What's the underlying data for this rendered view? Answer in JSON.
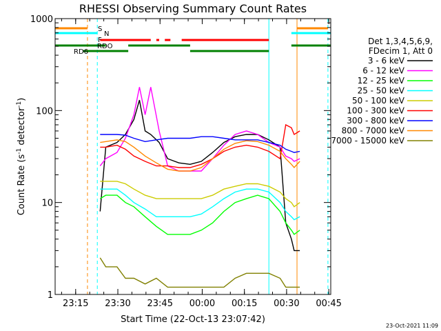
{
  "chart_data": {
    "type": "line",
    "title": "RHESSI Observing Summary Count Rates",
    "xlabel": "Start Time (22-Oct-13 23:07:42)",
    "ylabel": "Count Rate (s^-1 detector^-1)",
    "ylabel_parts": [
      "Count Rate (s",
      "-1",
      " detector",
      "-1",
      ")"
    ],
    "yscale": "log",
    "ylim": [
      1,
      1000
    ],
    "xlim_minutes_after_start": [
      0,
      98
    ],
    "x_ticks": [
      "23:15",
      "23:30",
      "23:45",
      "00:00",
      "00:15",
      "00:30",
      "00:45"
    ],
    "x_tick_minutes": [
      7.3,
      22.3,
      37.3,
      52.3,
      67.3,
      82.3,
      97.3
    ],
    "y_ticks": [
      "1",
      "10",
      "100",
      "1000"
    ],
    "y_tick_values": [
      1,
      10,
      100,
      1000
    ],
    "legend_header": [
      "Det 1,3,4,5,6,9,",
      "FDecim 1, Att 0"
    ],
    "legend_placement": "right",
    "series": [
      {
        "name": "3 - 6 keV",
        "color": "#000000",
        "x": [
          16,
          18,
          22,
          25,
          28,
          30,
          32,
          34,
          37,
          40,
          44,
          48,
          52,
          56,
          60,
          64,
          68,
          72,
          76,
          80,
          82,
          84,
          85,
          87
        ],
        "y": [
          8,
          40,
          45,
          55,
          80,
          130,
          60,
          55,
          45,
          30,
          27,
          26,
          28,
          35,
          45,
          52,
          55,
          55,
          48,
          40,
          6,
          4,
          3,
          3
        ]
      },
      {
        "name": "6 - 12 keV",
        "color": "#ff00ff",
        "x": [
          16,
          18,
          22,
          25,
          28,
          30,
          32,
          34,
          37,
          40,
          44,
          48,
          52,
          56,
          60,
          64,
          68,
          72,
          76,
          80,
          82,
          84,
          85,
          87
        ],
        "y": [
          25,
          30,
          35,
          50,
          90,
          180,
          90,
          180,
          60,
          25,
          22,
          22,
          22,
          30,
          42,
          55,
          60,
          55,
          45,
          40,
          32,
          30,
          28,
          30
        ]
      },
      {
        "name": "12 - 25 keV",
        "color": "#00ff00",
        "x": [
          16,
          18,
          22,
          25,
          28,
          32,
          36,
          40,
          44,
          48,
          52,
          56,
          60,
          64,
          68,
          72,
          76,
          80,
          82,
          84,
          85,
          87
        ],
        "y": [
          11,
          12,
          12,
          10,
          9,
          7,
          5.5,
          4.5,
          4.5,
          4.5,
          5,
          6,
          8,
          10,
          11,
          12,
          11,
          8,
          6,
          5,
          4.5,
          5
        ]
      },
      {
        "name": "25 - 50 keV",
        "color": "#00ffff",
        "x": [
          16,
          18,
          22,
          25,
          28,
          32,
          36,
          40,
          44,
          48,
          52,
          56,
          60,
          64,
          68,
          72,
          76,
          80,
          82,
          84,
          85,
          87
        ],
        "y": [
          14,
          14,
          14,
          12,
          10,
          8.5,
          7,
          7,
          7,
          7,
          7.5,
          9,
          11,
          13,
          14,
          14,
          13,
          10,
          8,
          7,
          6.5,
          7
        ]
      },
      {
        "name": "50 - 100 keV",
        "color": "#cccc00",
        "x": [
          16,
          18,
          22,
          25,
          28,
          32,
          36,
          40,
          44,
          48,
          52,
          56,
          60,
          64,
          68,
          72,
          76,
          80,
          82,
          84,
          85,
          87
        ],
        "y": [
          17,
          17,
          17,
          16,
          14,
          12,
          11,
          11,
          11,
          11,
          11,
          12,
          14,
          15,
          16,
          16,
          15,
          13,
          11,
          10,
          9,
          10
        ]
      },
      {
        "name": "100 - 300 keV",
        "color": "#ff0000",
        "x": [
          16,
          18,
          22,
          25,
          28,
          32,
          36,
          40,
          44,
          48,
          52,
          56,
          60,
          64,
          68,
          72,
          76,
          80,
          82,
          84,
          85,
          87
        ],
        "y": [
          40,
          40,
          42,
          38,
          32,
          28,
          25,
          25,
          24,
          24,
          26,
          30,
          36,
          40,
          42,
          40,
          36,
          30,
          70,
          65,
          55,
          60
        ]
      },
      {
        "name": "300 - 800 keV",
        "color": "#0000ff",
        "x": [
          16,
          18,
          22,
          25,
          28,
          32,
          36,
          40,
          44,
          48,
          52,
          56,
          60,
          64,
          68,
          72,
          76,
          80,
          82,
          84,
          85,
          87
        ],
        "y": [
          55,
          55,
          55,
          54,
          50,
          46,
          48,
          50,
          50,
          50,
          52,
          52,
          50,
          48,
          48,
          48,
          45,
          42,
          38,
          36,
          35,
          36
        ]
      },
      {
        "name": "800 - 7000 keV",
        "color": "#ff8800",
        "x": [
          16,
          18,
          22,
          25,
          28,
          32,
          36,
          40,
          44,
          48,
          52,
          56,
          60,
          64,
          68,
          72,
          76,
          80,
          82,
          84,
          85,
          87
        ],
        "y": [
          45,
          46,
          48,
          46,
          40,
          32,
          27,
          23,
          22,
          22,
          24,
          30,
          38,
          44,
          47,
          46,
          42,
          36,
          30,
          26,
          24,
          28
        ]
      },
      {
        "name": "7000 - 15000 keV",
        "color": "#808000",
        "x": [
          16,
          18,
          22,
          25,
          28,
          32,
          36,
          40,
          44,
          48,
          52,
          56,
          60,
          64,
          68,
          72,
          76,
          80,
          82,
          84,
          85,
          87
        ],
        "y": [
          2.5,
          2,
          2,
          1.5,
          1.5,
          1.3,
          1.5,
          1.2,
          1.2,
          1.2,
          1.2,
          1.2,
          1.2,
          1.5,
          1.7,
          1.7,
          1.7,
          1.5,
          1.2,
          1.2,
          1.2,
          1.2
        ]
      }
    ],
    "annotations": [
      {
        "text": "S",
        "color": "#ff8800"
      },
      {
        "text": "N",
        "color": "#00ffff"
      },
      {
        "text": "F",
        "color": "#000000"
      },
      {
        "text": "RDO",
        "color": "#008000"
      },
      {
        "text": "RD6",
        "color": "#008000"
      }
    ],
    "state_bars": [
      {
        "label": "S",
        "color": "#ff8800",
        "x": [
          [
            0,
            11.5
          ],
          [
            86,
            97
          ]
        ]
      },
      {
        "label": "N",
        "color": "#00ffff",
        "x": [
          [
            0,
            15
          ],
          [
            84,
            98
          ]
        ]
      },
      {
        "label": "F",
        "color": "#ff0000",
        "x": [
          [
            16,
            34
          ],
          [
            36,
            37
          ],
          [
            39,
            41
          ],
          [
            45,
            76
          ]
        ]
      },
      {
        "label": "RDO",
        "color": "#008000",
        "x": [
          [
            0,
            18
          ],
          [
            26,
            48
          ],
          [
            84,
            98
          ]
        ]
      },
      {
        "label": "RD6",
        "color": "#008000",
        "x": [
          [
            10,
            26
          ],
          [
            48,
            76
          ]
        ]
      }
    ],
    "vertical_lines": [
      {
        "x": 0,
        "color": "#00ffff",
        "style": "solid"
      },
      {
        "x": 11.5,
        "color": "#ff8800",
        "style": "dashed"
      },
      {
        "x": 15,
        "color": "#00ffff",
        "style": "dashed"
      },
      {
        "x": 76,
        "color": "#00ffff",
        "style": "solid"
      },
      {
        "x": 86,
        "color": "#ff8800",
        "style": "solid"
      },
      {
        "x": 97,
        "color": "#00ffff",
        "style": "dashed"
      }
    ],
    "grid": false,
    "footer_date": "23-Oct-2021 11:09"
  }
}
